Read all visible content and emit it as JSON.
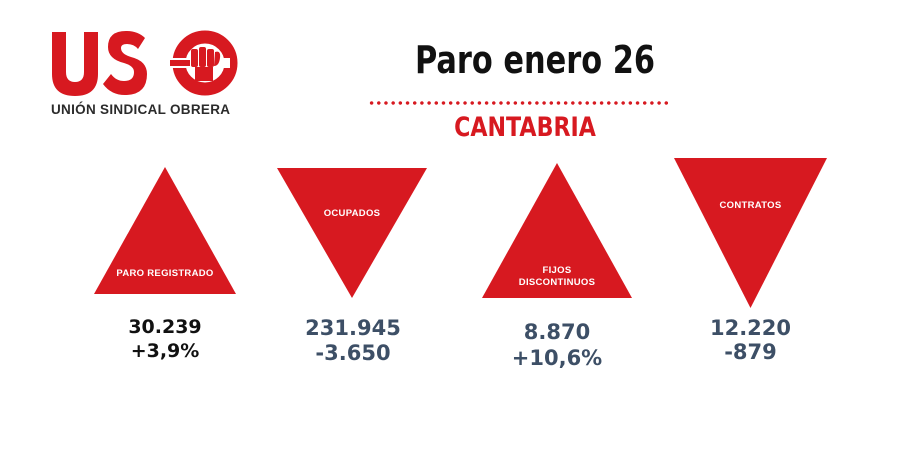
{
  "logo": {
    "letters": "USO",
    "subtitle": "UNIÓN SINDICAL OBRERA",
    "brand_color": "#d71920",
    "icon": "fist-icon"
  },
  "header": {
    "title": "Paro enero 26",
    "region": "CANTABRIA",
    "accent_color": "#d71920"
  },
  "indicators": [
    {
      "label": "PARO REGISTRADO",
      "direction": "up",
      "value": "30.239",
      "change": "+3,9%",
      "value_color": "#111111"
    },
    {
      "label": "OCUPADOS",
      "direction": "down",
      "value": "231.945",
      "change": "-3.650",
      "value_color": "#3d4f66"
    },
    {
      "label_line1": "FIJOS",
      "label_line2": "DISCONTINUOS",
      "direction": "up",
      "value": "8.870",
      "change": "+10,6%",
      "value_color": "#3d4f66"
    },
    {
      "label": "CONTRATOS",
      "direction": "down",
      "value": "12.220",
      "change": "-879",
      "value_color": "#3d4f66"
    }
  ]
}
